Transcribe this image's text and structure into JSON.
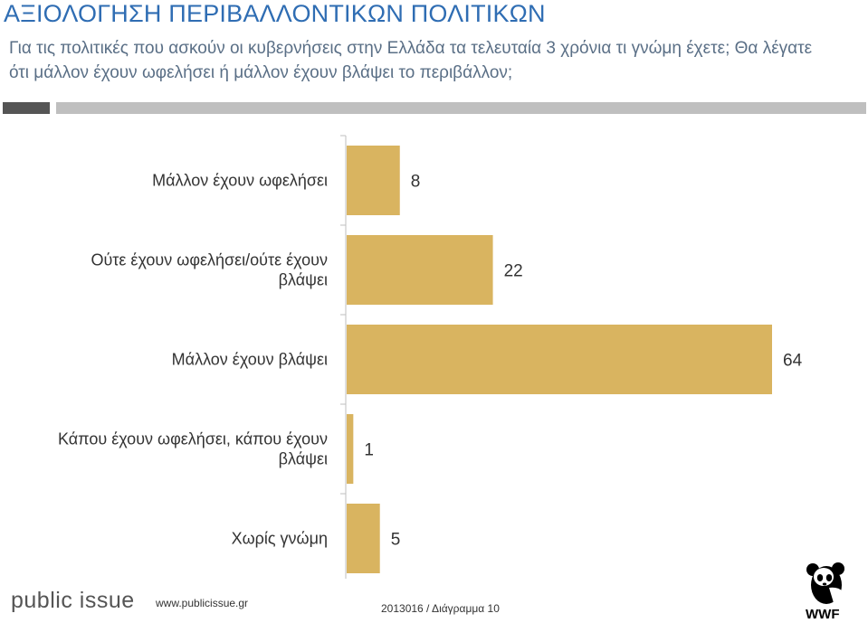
{
  "header": {
    "title": "ΑΞΙΟΛΟΓΗΣΗ ΠΕΡΙΒΑΛΛΟΝΤΙΚΩΝ ΠΟΛΙΤΙΚΩΝ",
    "question": "Για τις πολιτικές που ασκούν οι κυβερνήσεις στην Ελλάδα τα τελευταία 3 χρόνια τι γνώμη έχετε; Θα λέγατε ότι μάλλον έχουν ωφελήσει ή μάλλον έχουν βλάψει το περιβάλλον;"
  },
  "chart_data": {
    "type": "bar",
    "orientation": "horizontal",
    "categories": [
      [
        "Μάλλον έχουν ωφελήσει"
      ],
      [
        "Ούτε έχουν ωφελήσει/ούτε έχουν",
        "βλάψει"
      ],
      [
        "Μάλλον έχουν βλάψει"
      ],
      [
        "Κάπου έχουν ωφελήσει, κάπου έχουν",
        "βλάψει"
      ],
      [
        "Χωρίς γνώμη"
      ]
    ],
    "values": [
      8,
      22,
      64,
      1,
      5
    ],
    "bar_color": "#d9b460",
    "xlim": [
      0,
      64
    ],
    "grid": false,
    "legend": "none"
  },
  "footer": {
    "brand": "public issue",
    "url": "www.publicissue.gr",
    "reference": "2013016 / Διάγραμμα 10",
    "sponsor_logo": "WWF"
  },
  "colors": {
    "title": "#2f6db3",
    "subtitle": "#5a6f86",
    "axis": "#bfbfbf"
  }
}
